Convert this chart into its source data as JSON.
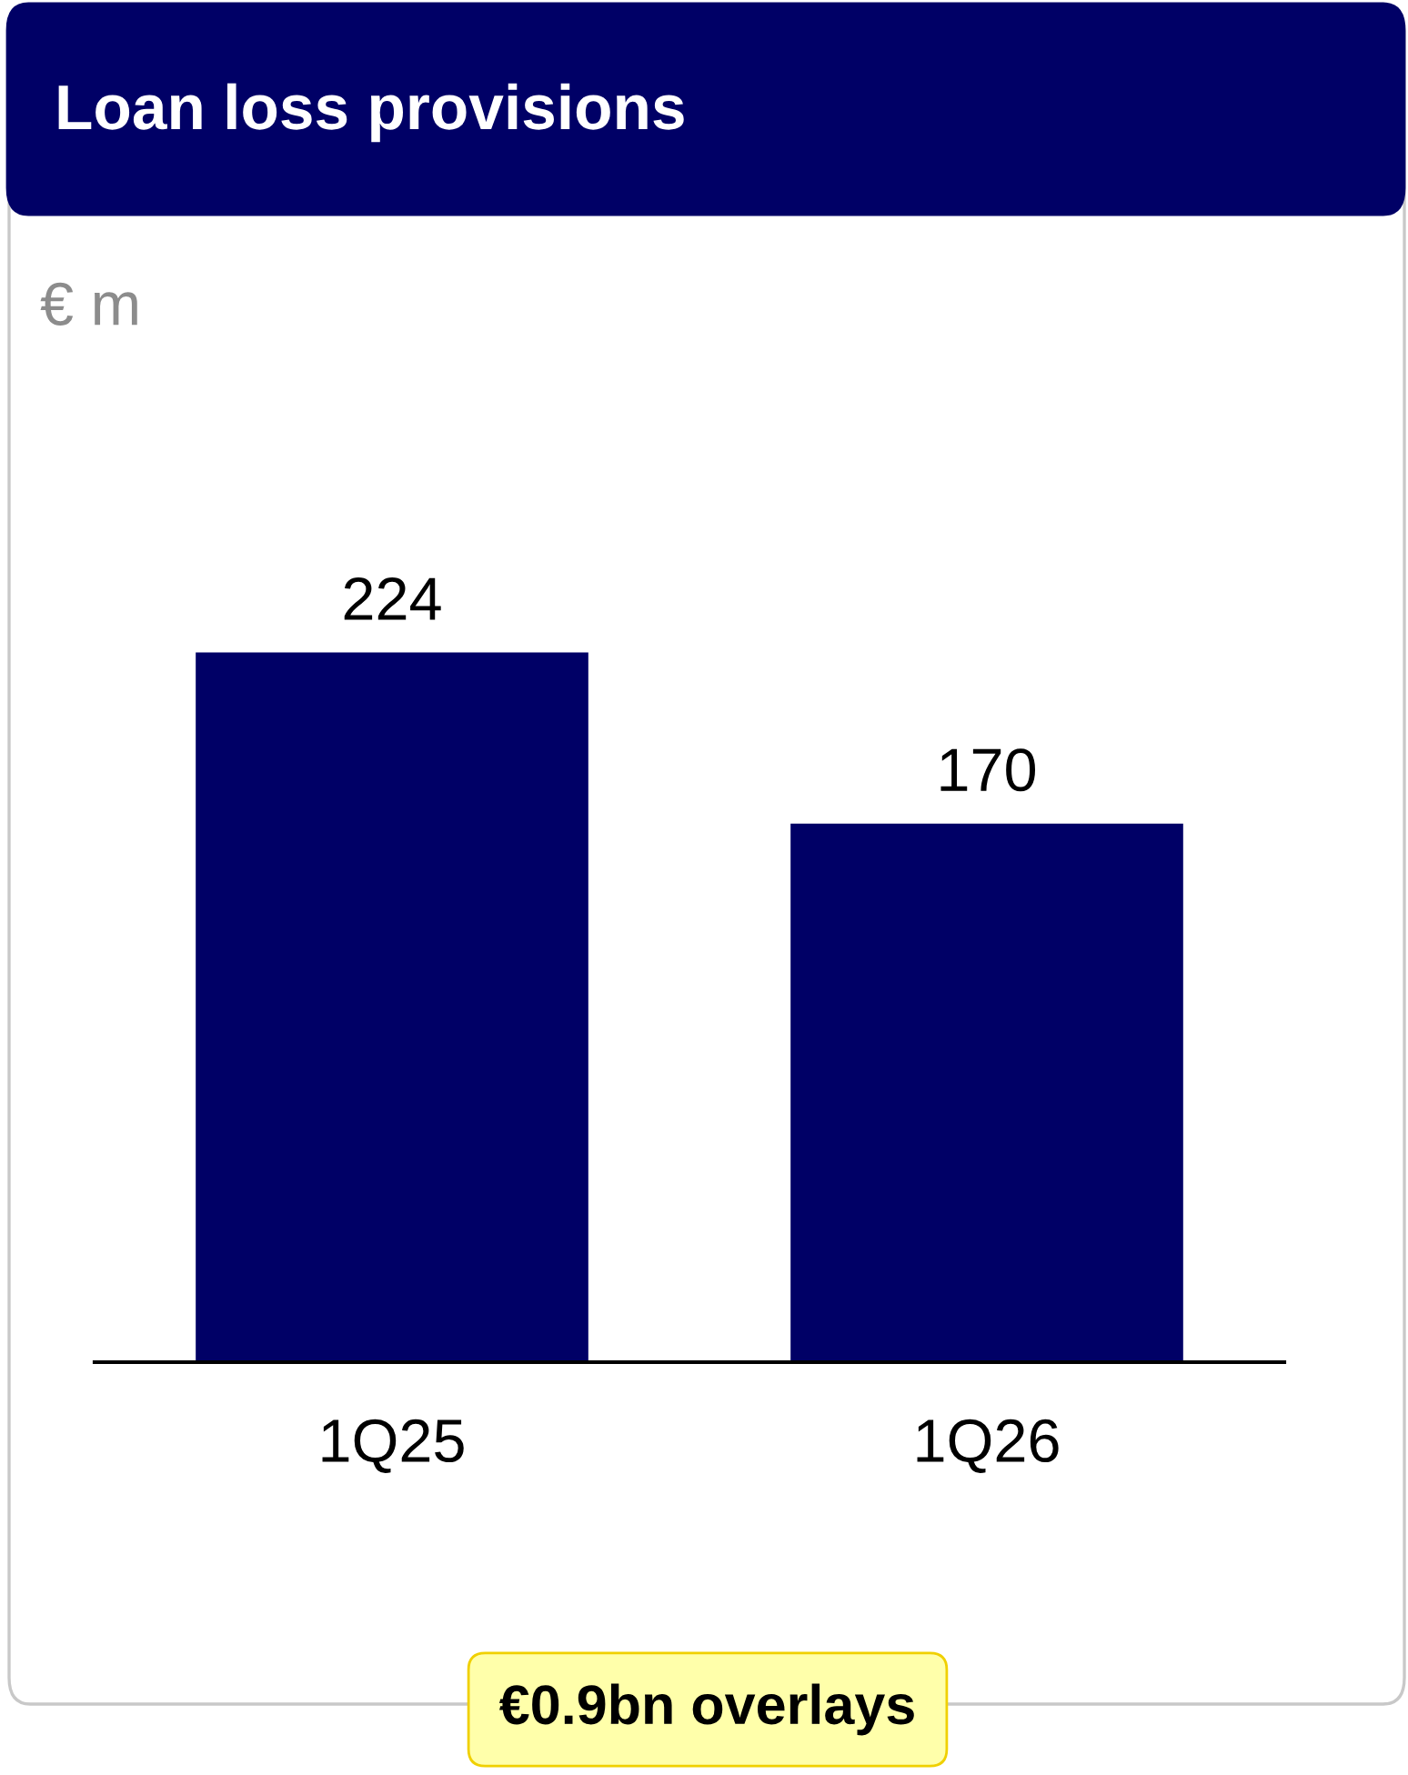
{
  "chart_data": {
    "type": "bar",
    "title": "Loan loss provisions",
    "subtitle": "€ m",
    "categories": [
      "1Q25",
      "1Q26"
    ],
    "values": [
      224,
      170
    ],
    "color": "#000066",
    "data_labels": true,
    "grid": false,
    "legend": false,
    "tick_labels": "x",
    "annotations": [
      "€0.9bn overlays"
    ]
  }
}
